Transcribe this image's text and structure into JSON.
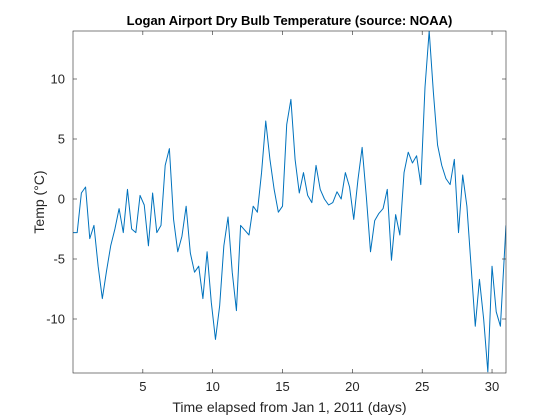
{
  "chart_data": {
    "type": "line",
    "title": "Logan Airport Dry Bulb Temperature (source: NOAA)",
    "xlabel": "Time elapsed from Jan 1, 2011 (days)",
    "ylabel": "Temp (°C)",
    "xlim": [
      0,
      31
    ],
    "ylim": [
      -14.5,
      14
    ],
    "xticks": [
      5,
      10,
      15,
      20,
      25,
      30
    ],
    "yticks": [
      -10,
      -5,
      0,
      5,
      10
    ],
    "grid": false,
    "box": true,
    "colors": {
      "line": "#0072BD",
      "axes": "#262626",
      "background": "#ffffff"
    },
    "series": [
      {
        "x": [
          0.0,
          0.3,
          0.6,
          0.9,
          1.2,
          1.5,
          1.8,
          2.1,
          2.4,
          2.7,
          3.0,
          3.3,
          3.6,
          3.9,
          4.2,
          4.5,
          4.8,
          5.1,
          5.4,
          5.7,
          6.0,
          6.3,
          6.6,
          6.9,
          7.2,
          7.5,
          7.8,
          8.1,
          8.4,
          8.7,
          9.0,
          9.3,
          9.6,
          9.9,
          10.2,
          10.5,
          10.8,
          11.1,
          11.4,
          11.7,
          12.0,
          12.3,
          12.6,
          12.9,
          13.2,
          13.5,
          13.8,
          14.1,
          14.4,
          14.7,
          15.0,
          15.3,
          15.6,
          15.9,
          16.2,
          16.5,
          16.8,
          17.1,
          17.4,
          17.7,
          18.0,
          18.3,
          18.6,
          18.9,
          19.2,
          19.5,
          19.8,
          20.1,
          20.4,
          20.7,
          21.0,
          21.3,
          21.6,
          21.9,
          22.2,
          22.5,
          22.8,
          23.1,
          23.4,
          23.7,
          24.0,
          24.3,
          24.6,
          24.9,
          25.2,
          25.5,
          25.8,
          26.1,
          26.4,
          26.7,
          27.0,
          27.3,
          27.6,
          27.9,
          28.2,
          28.5,
          28.8,
          29.1,
          29.4,
          29.7,
          30.0,
          30.3,
          30.6,
          31.0
        ],
        "y": [
          -2.8,
          -2.8,
          0.5,
          1.0,
          -3.3,
          -2.2,
          -5.6,
          -8.3,
          -6.0,
          -3.9,
          -2.5,
          -0.8,
          -2.8,
          0.8,
          -2.5,
          -2.8,
          0.3,
          -0.5,
          -3.9,
          0.5,
          -2.8,
          -2.2,
          2.8,
          4.2,
          -1.7,
          -4.4,
          -3.1,
          -0.6,
          -4.5,
          -6.1,
          -5.6,
          -8.3,
          -4.4,
          -8.6,
          -11.7,
          -8.9,
          -3.9,
          -1.5,
          -6.1,
          -9.3,
          -2.2,
          -2.6,
          -3.0,
          -0.6,
          -1.1,
          2.2,
          6.5,
          3.3,
          0.8,
          -1.1,
          -0.6,
          6.2,
          8.3,
          3.3,
          0.5,
          2.2,
          0.3,
          -0.3,
          2.8,
          0.8,
          0.0,
          -0.5,
          -0.3,
          0.6,
          0.0,
          2.2,
          1.0,
          -1.7,
          1.6,
          4.3,
          0.2,
          -4.4,
          -1.8,
          -1.2,
          -0.8,
          0.8,
          -5.1,
          -1.3,
          -3.0,
          2.2,
          3.9,
          3.0,
          3.6,
          1.2,
          9.3,
          14.0,
          8.9,
          4.5,
          2.8,
          1.7,
          1.2,
          3.3,
          -2.8,
          2.0,
          -0.6,
          -5.6,
          -10.6,
          -6.7,
          -10.0,
          -14.4,
          -5.6,
          -9.4,
          -10.6,
          -2.2
        ]
      }
    ]
  }
}
